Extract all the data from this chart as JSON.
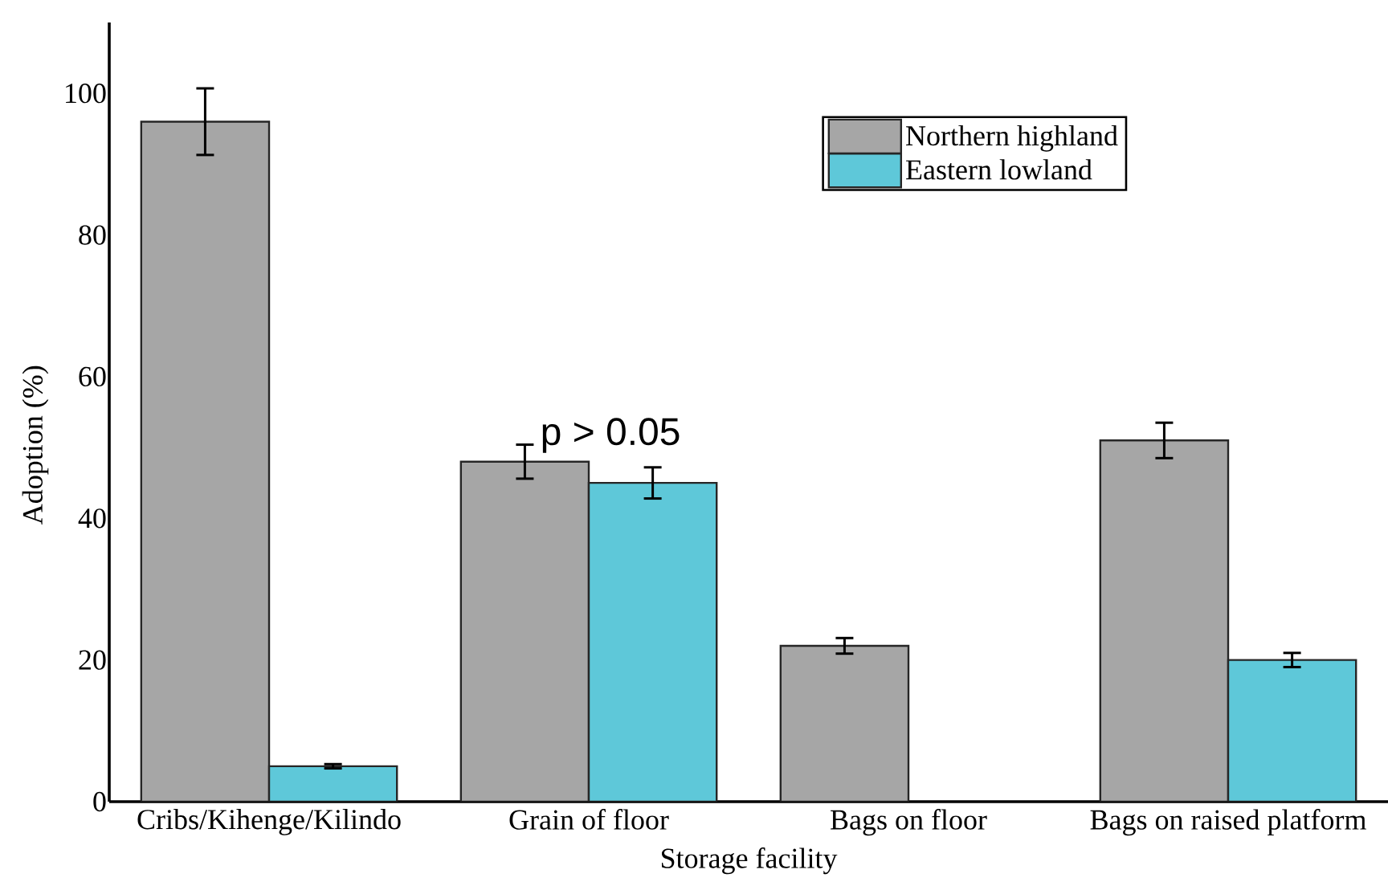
{
  "chart_data": {
    "type": "bar",
    "xlabel": "Storage facility",
    "ylabel": "Adoption (%)",
    "categories": [
      "Cribs/Kihenge/Kilindo",
      "Grain of floor",
      "Bags on floor",
      "Bags on raised platform"
    ],
    "series": [
      {
        "name": "Northern highland",
        "color": "#a6a6a6",
        "values": [
          96,
          48,
          22,
          51
        ],
        "errors": [
          4.7,
          2.4,
          1.1,
          2.5
        ]
      },
      {
        "name": "Eastern lowland",
        "color": "#5ec8d9",
        "values": [
          5,
          45,
          null,
          20
        ],
        "errors": [
          0.3,
          2.2,
          null,
          1
        ]
      }
    ],
    "ylim": [
      0,
      110
    ],
    "yticks": [
      0,
      20,
      40,
      60,
      80,
      100
    ],
    "annotations": [
      "p > 0.05"
    ],
    "legend": "top right"
  }
}
